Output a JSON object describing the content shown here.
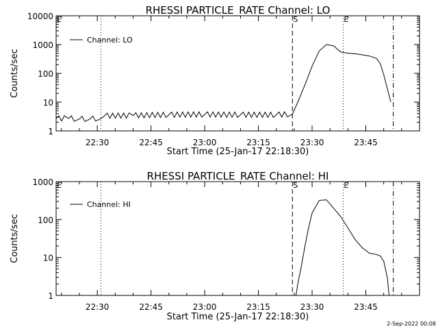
{
  "footer": {
    "timestamp": "2-Sep-2022 00:08"
  },
  "chart_data": [
    {
      "type": "line",
      "title": "RHESSI PARTICLE_RATE Channel: LO",
      "xlabel": "Start Time (25-Jan-17 22:18:30)",
      "ylabel": "Counts/sec",
      "y_scale": "log",
      "ylim": [
        1,
        10000
      ],
      "ytick_labels": [
        "1",
        "10",
        "100",
        "1000",
        "10000"
      ],
      "xlim": [
        "22:18:30",
        "24:00:00"
      ],
      "xtick_labels": [
        "22:30",
        "22:45",
        "23:00",
        "23:15",
        "23:30",
        "23:45"
      ],
      "legend": {
        "position": "top-left",
        "entries": [
          "Channel: LO"
        ]
      },
      "markers": [
        {
          "label": "E",
          "time": "22:18:30",
          "style": "none"
        },
        {
          "label": "",
          "time": "22:31:00",
          "style": "dotted"
        },
        {
          "label": "S",
          "time": "23:24:30",
          "style": "dashed"
        },
        {
          "label": "E",
          "time": "23:38:40",
          "style": "dotted"
        },
        {
          "label": "",
          "time": "23:52:40",
          "style": "dashdot"
        }
      ],
      "series": [
        {
          "name": "Channel: LO",
          "x": [
            "22:18:30",
            "22:22:00",
            "22:25:00",
            "22:28:00",
            "22:31:00",
            "22:32:00",
            "22:40:00",
            "22:50:00",
            "23:00:00",
            "23:10:00",
            "23:20:00",
            "23:24:30",
            "23:26:00",
            "23:28:00",
            "23:30:00",
            "23:32:00",
            "23:34:00",
            "23:36:00",
            "23:38:00",
            "23:40:00",
            "23:42:00",
            "23:44:00",
            "23:46:00",
            "23:48:00",
            "23:49:00",
            "23:50:00",
            "23:51:00",
            "23:52:00"
          ],
          "y": [
            2.7,
            2.7,
            2.6,
            2.6,
            2.7,
            3.3,
            3.4,
            3.6,
            3.7,
            3.6,
            3.6,
            3.8,
            10,
            40,
            180,
            600,
            1000,
            900,
            550,
            500,
            480,
            440,
            400,
            330,
            220,
            90,
            30,
            10
          ]
        }
      ]
    },
    {
      "type": "line",
      "title": "RHESSI PARTICLE_RATE Channel: HI",
      "xlabel": "Start Time (25-Jan-17 22:18:30)",
      "ylabel": "Counts/sec",
      "y_scale": "log",
      "ylim": [
        1,
        1000
      ],
      "ytick_labels": [
        "1",
        "10",
        "100",
        "1000"
      ],
      "xlim": [
        "22:18:30",
        "24:00:00"
      ],
      "xtick_labels": [
        "22:30",
        "22:45",
        "23:00",
        "23:15",
        "23:30",
        "23:45"
      ],
      "legend": {
        "position": "top-left",
        "entries": [
          "Channel: HI"
        ]
      },
      "markers": [
        {
          "label": "E",
          "time": "22:18:30",
          "style": "none"
        },
        {
          "label": "",
          "time": "22:31:00",
          "style": "dotted"
        },
        {
          "label": "S",
          "time": "23:24:30",
          "style": "dashed"
        },
        {
          "label": "E",
          "time": "23:38:40",
          "style": "dotted"
        },
        {
          "label": "",
          "time": "23:52:40",
          "style": "dashdot"
        }
      ],
      "series": [
        {
          "name": "Channel: HI",
          "x": [
            "23:25:30",
            "23:26:00",
            "23:27:00",
            "23:28:00",
            "23:29:00",
            "23:30:00",
            "23:32:00",
            "23:34:00",
            "23:36:00",
            "23:38:00",
            "23:40:00",
            "23:42:00",
            "23:44:00",
            "23:46:00",
            "23:48:00",
            "23:49:00",
            "23:50:00",
            "23:51:00",
            "23:51:30"
          ],
          "y": [
            1,
            2,
            6,
            20,
            60,
            150,
            320,
            330,
            200,
            120,
            60,
            30,
            18,
            13,
            12,
            11,
            8,
            3,
            1
          ]
        }
      ]
    }
  ]
}
